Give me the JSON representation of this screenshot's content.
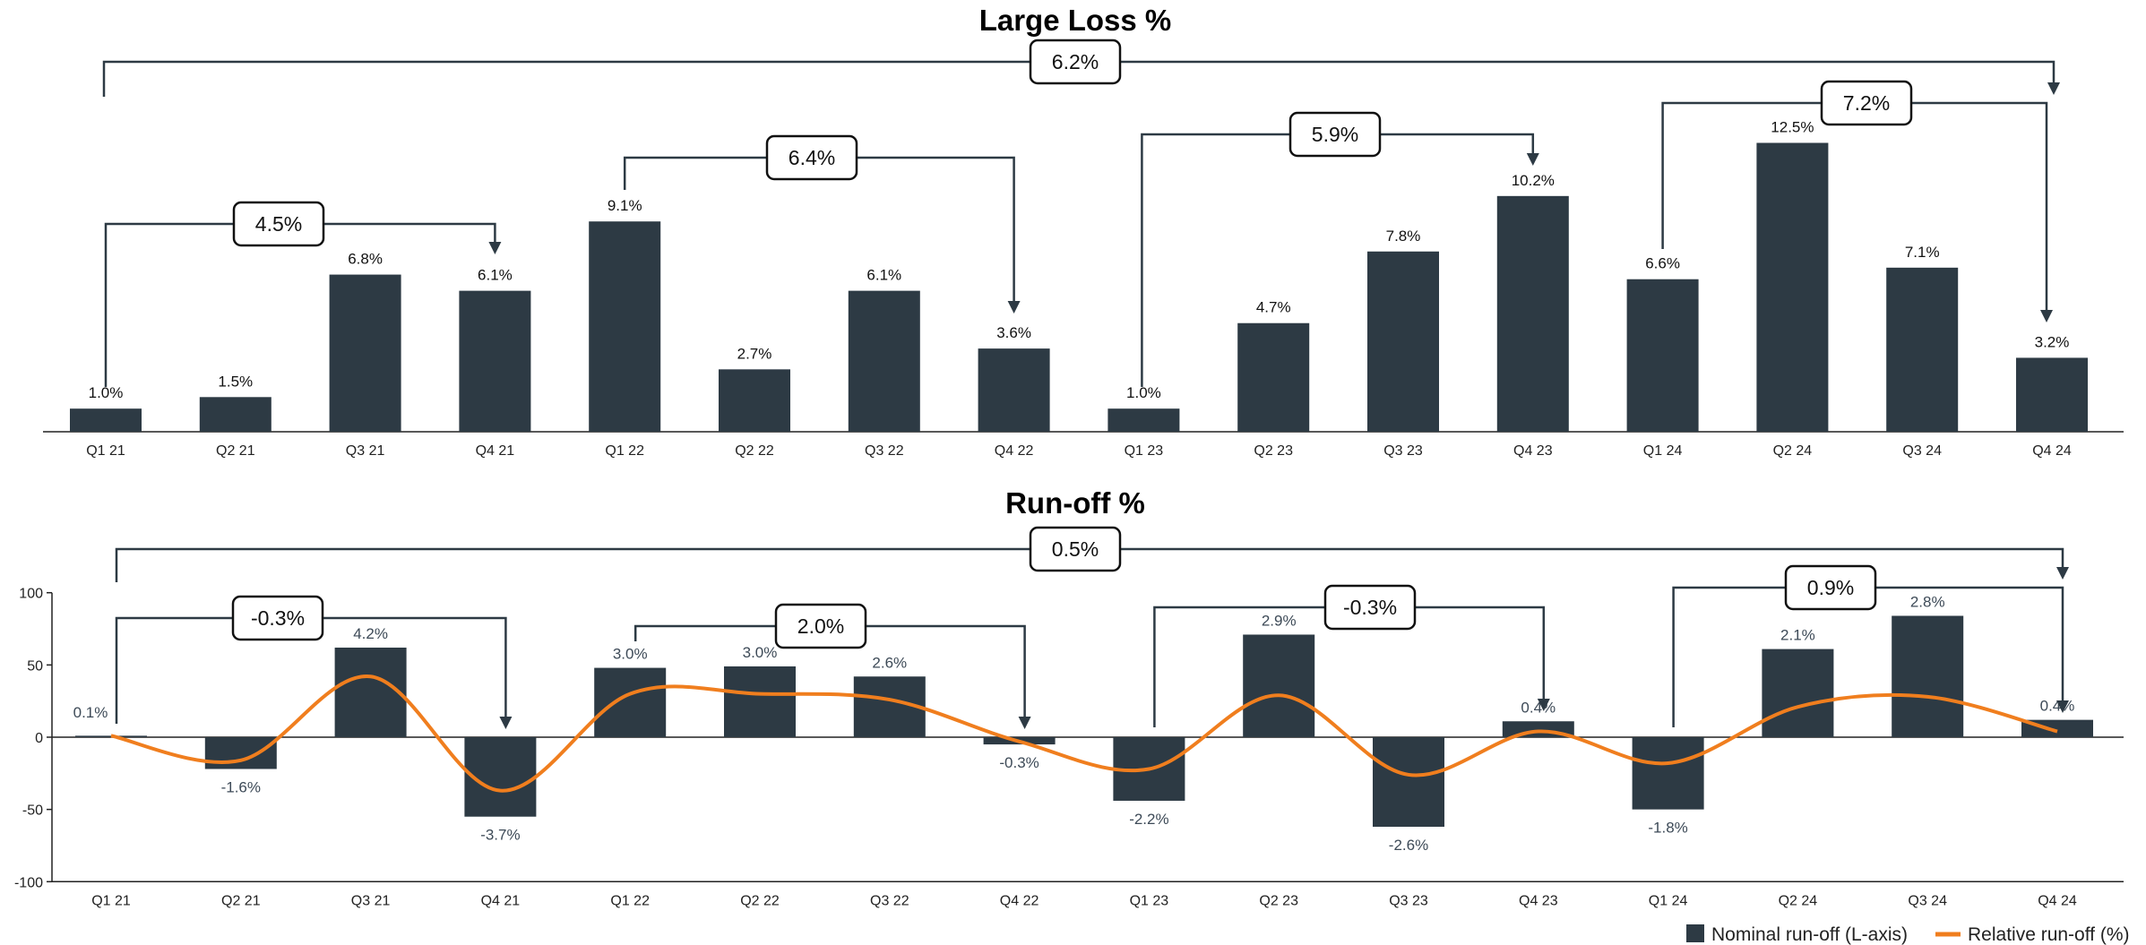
{
  "colors": {
    "bar": "#2d3a44",
    "line": "#f07e1e",
    "bracket": "#2d3a44",
    "axis": "#222222"
  },
  "categories": [
    "Q1 21",
    "Q2 21",
    "Q3 21",
    "Q4 21",
    "Q1 22",
    "Q2 22",
    "Q3 22",
    "Q4 22",
    "Q1 23",
    "Q2 23",
    "Q3 23",
    "Q4 23",
    "Q1 24",
    "Q2 24",
    "Q3 24",
    "Q4 24"
  ],
  "chart_data": [
    {
      "type": "bar",
      "title": "Large Loss %",
      "categories": [
        "Q1 21",
        "Q2 21",
        "Q3 21",
        "Q4 21",
        "Q1 22",
        "Q2 22",
        "Q3 22",
        "Q4 22",
        "Q1 23",
        "Q2 23",
        "Q3 23",
        "Q4 23",
        "Q1 24",
        "Q2 24",
        "Q3 24",
        "Q4 24"
      ],
      "values": [
        1.0,
        1.5,
        6.8,
        6.1,
        9.1,
        2.7,
        6.1,
        3.6,
        1.0,
        4.7,
        7.8,
        10.2,
        6.6,
        12.5,
        7.1,
        3.2
      ],
      "labels": [
        "1.0%",
        "1.5%",
        "6.8%",
        "6.1%",
        "9.1%",
        "2.7%",
        "6.1%",
        "3.6%",
        "1.0%",
        "4.7%",
        "7.8%",
        "10.2%",
        "6.6%",
        "12.5%",
        "7.1%",
        "3.2%"
      ],
      "ylim": [
        0,
        13.5
      ],
      "brackets": [
        {
          "from": 0,
          "to": 15,
          "label": "6.2%",
          "level": "top"
        },
        {
          "from": 0,
          "to": 3,
          "label": "4.5%",
          "level": "low"
        },
        {
          "from": 4,
          "to": 7,
          "label": "6.4%",
          "level": "mid"
        },
        {
          "from": 8,
          "to": 11,
          "label": "5.9%",
          "level": "mid-high"
        },
        {
          "from": 12,
          "to": 15,
          "label": "7.2%",
          "level": "high"
        }
      ]
    },
    {
      "type": "bar+line",
      "title": "Run-off %",
      "categories": [
        "Q1 21",
        "Q2 21",
        "Q3 21",
        "Q4 21",
        "Q1 22",
        "Q2 22",
        "Q3 22",
        "Q4 22",
        "Q1 23",
        "Q2 23",
        "Q3 23",
        "Q4 23",
        "Q1 24",
        "Q2 24",
        "Q3 24",
        "Q4 24"
      ],
      "yticks": [
        "100",
        "50",
        "0",
        "-50",
        "-100"
      ],
      "ylim": [
        -100,
        100
      ],
      "series": [
        {
          "name": "Nominal run-off (L-axis)",
          "type": "bar",
          "values": [
            1,
            -22,
            62,
            -55,
            48,
            49,
            42,
            -5,
            -44,
            71,
            -62,
            11,
            -50,
            61,
            84,
            12
          ]
        },
        {
          "name": "Relative run-off (%)",
          "type": "line",
          "values": [
            0.1,
            -1.6,
            4.2,
            -3.7,
            3.0,
            3.0,
            2.6,
            -0.3,
            -2.2,
            2.9,
            -2.6,
            0.4,
            -1.8,
            2.1,
            2.8,
            0.4
          ]
        }
      ],
      "labels": [
        "0.1%",
        "-1.6%",
        "4.2%",
        "-3.7%",
        "3.0%",
        "3.0%",
        "2.6%",
        "-0.3%",
        "-2.2%",
        "2.9%",
        "-2.6%",
        "0.4%",
        "-1.8%",
        "2.1%",
        "2.8%",
        "0.4%"
      ],
      "brackets": [
        {
          "from": 0,
          "to": 15,
          "label": "0.5%",
          "level": "top"
        },
        {
          "from": 0,
          "to": 3,
          "label": "-0.3%",
          "level": "low"
        },
        {
          "from": 4,
          "to": 7,
          "label": "2.0%",
          "level": "low2"
        },
        {
          "from": 8,
          "to": 11,
          "label": "-0.3%",
          "level": "mid"
        },
        {
          "from": 12,
          "to": 15,
          "label": "0.9%",
          "level": "mid2"
        }
      ],
      "legend": {
        "position": "bottom-right",
        "bar_label": "Nominal run-off (L-axis)",
        "line_label": "Relative run-off (%)"
      }
    }
  ]
}
